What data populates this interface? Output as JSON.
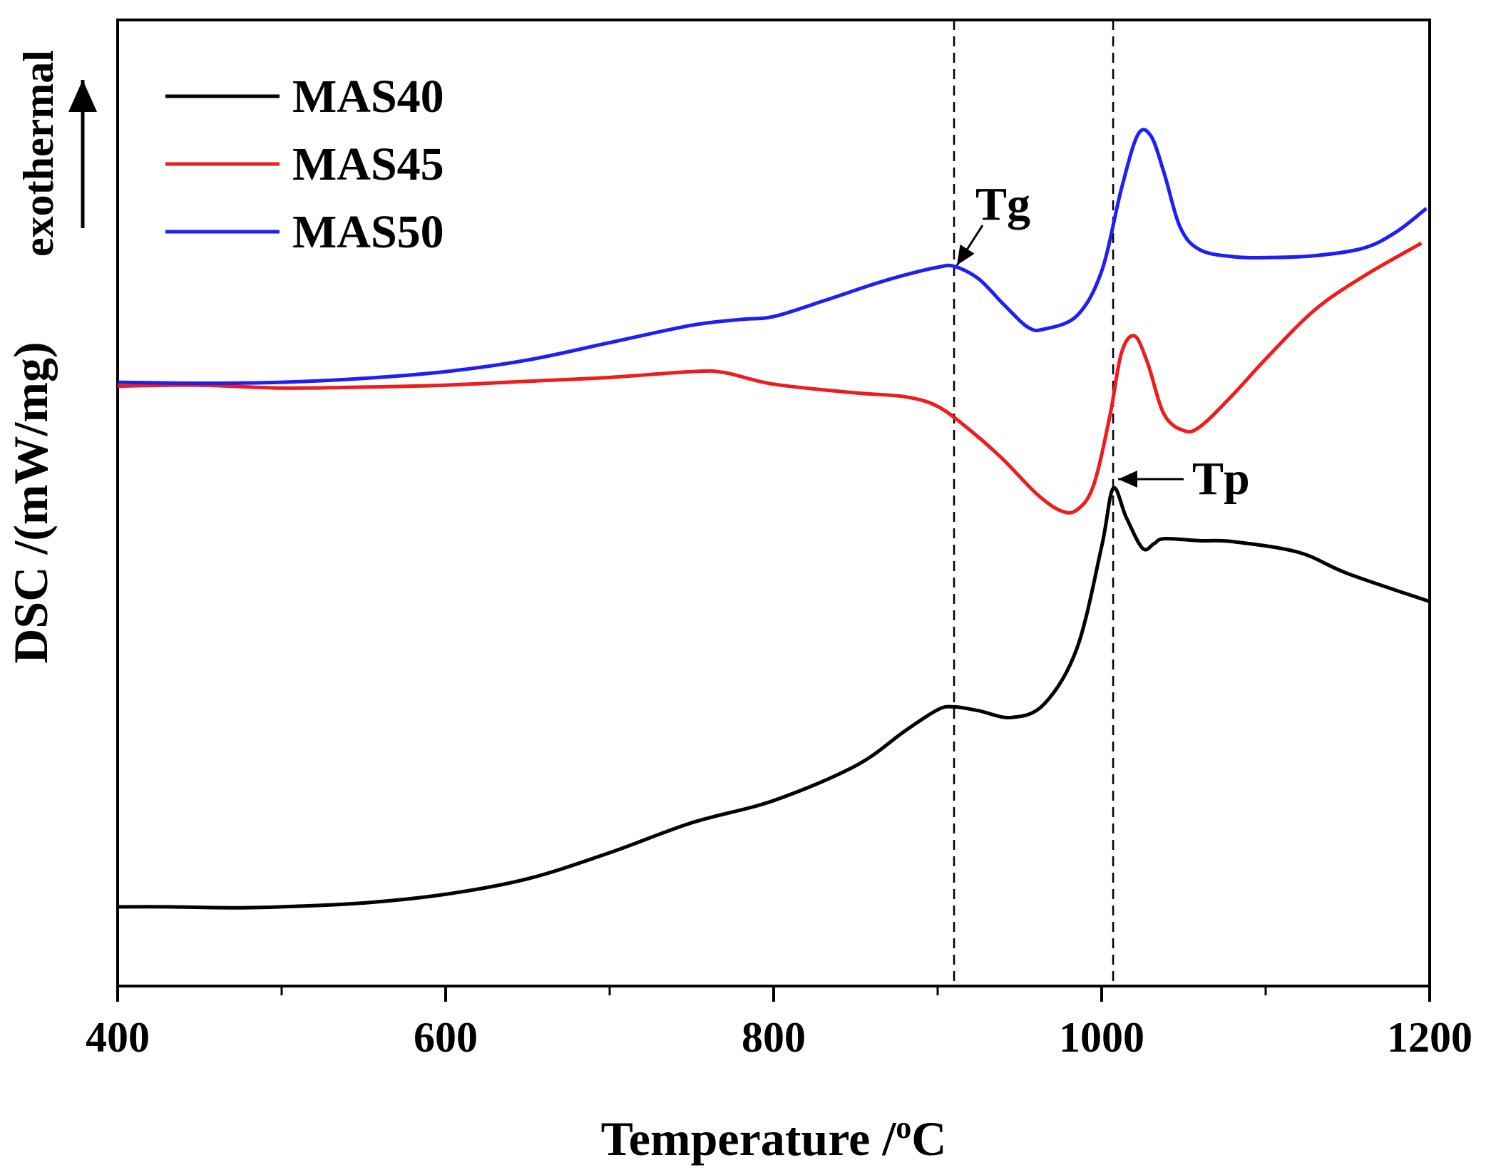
{
  "chart_data": {
    "type": "line",
    "title": "",
    "xlabel": "Temperature /",
    "xlabel_unit_sup": "o",
    "xlabel_unit": "C",
    "ylabel": "DSC /(mW/mg)",
    "xlim": [
      400,
      1200
    ],
    "ylim": [
      0,
      100
    ],
    "x_ticks": [
      400,
      600,
      800,
      1000,
      1200
    ],
    "x_tick_labels": [
      "400",
      "600",
      "800",
      "1000",
      "1200"
    ],
    "x_minor_ticks": [
      500,
      700,
      900,
      1100
    ],
    "y_tick_labels_shown": false,
    "legend_position": "top-left",
    "exothermal_label": "exothermal",
    "guide_lines_x": [
      910,
      1007
    ],
    "annotations": [
      {
        "text": "Tg",
        "x": 910,
        "y": 74.5,
        "series": "MAS50"
      },
      {
        "text": "Tp",
        "x": 1007,
        "y": 51.5,
        "series": "MAS40"
      }
    ],
    "series": [
      {
        "name": "MAS40",
        "color": "#000000",
        "points": [
          [
            400,
            8.2
          ],
          [
            430,
            8.2
          ],
          [
            470,
            8.1
          ],
          [
            500,
            8.2
          ],
          [
            550,
            8.6
          ],
          [
            600,
            9.5
          ],
          [
            650,
            11.1
          ],
          [
            700,
            13.8
          ],
          [
            750,
            16.9
          ],
          [
            800,
            19.2
          ],
          [
            850,
            22.8
          ],
          [
            880,
            26.4
          ],
          [
            900,
            28.6
          ],
          [
            910,
            28.9
          ],
          [
            925,
            28.5
          ],
          [
            945,
            27.8
          ],
          [
            965,
            29.2
          ],
          [
            985,
            35.0
          ],
          [
            1000,
            45.5
          ],
          [
            1007,
            51.5
          ],
          [
            1015,
            48.5
          ],
          [
            1025,
            45.3
          ],
          [
            1032,
            45.8
          ],
          [
            1038,
            46.3
          ],
          [
            1060,
            46.1
          ],
          [
            1080,
            46.0
          ],
          [
            1120,
            44.9
          ],
          [
            1150,
            42.7
          ],
          [
            1200,
            39.8
          ]
        ]
      },
      {
        "name": "MAS45",
        "color": "#ee1c1c",
        "points": [
          [
            400,
            62.1
          ],
          [
            450,
            62.2
          ],
          [
            500,
            61.9
          ],
          [
            550,
            62.0
          ],
          [
            600,
            62.2
          ],
          [
            650,
            62.6
          ],
          [
            700,
            63.0
          ],
          [
            750,
            63.6
          ],
          [
            770,
            63.5
          ],
          [
            800,
            62.3
          ],
          [
            850,
            61.4
          ],
          [
            880,
            61.0
          ],
          [
            900,
            60.0
          ],
          [
            920,
            57.5
          ],
          [
            940,
            54.5
          ],
          [
            960,
            51.0
          ],
          [
            975,
            49.2
          ],
          [
            985,
            49.3
          ],
          [
            995,
            51.8
          ],
          [
            1005,
            59.0
          ],
          [
            1012,
            65.5
          ],
          [
            1020,
            67.3
          ],
          [
            1028,
            64.5
          ],
          [
            1038,
            59.2
          ],
          [
            1050,
            57.5
          ],
          [
            1060,
            57.9
          ],
          [
            1080,
            61.2
          ],
          [
            1100,
            64.9
          ],
          [
            1130,
            70.0
          ],
          [
            1160,
            73.5
          ],
          [
            1195,
            76.9
          ]
        ]
      },
      {
        "name": "MAS50",
        "color": "#1f1ff5",
        "points": [
          [
            400,
            62.5
          ],
          [
            450,
            62.4
          ],
          [
            500,
            62.5
          ],
          [
            550,
            62.9
          ],
          [
            600,
            63.6
          ],
          [
            650,
            64.8
          ],
          [
            700,
            66.6
          ],
          [
            750,
            68.4
          ],
          [
            780,
            69.0
          ],
          [
            800,
            69.3
          ],
          [
            830,
            70.9
          ],
          [
            860,
            72.6
          ],
          [
            880,
            73.6
          ],
          [
            900,
            74.4
          ],
          [
            910,
            74.5
          ],
          [
            925,
            73.2
          ],
          [
            940,
            70.6
          ],
          [
            955,
            68.2
          ],
          [
            965,
            68.0
          ],
          [
            985,
            69.4
          ],
          [
            1000,
            74.0
          ],
          [
            1012,
            82.5
          ],
          [
            1022,
            88.1
          ],
          [
            1030,
            88.0
          ],
          [
            1038,
            84.2
          ],
          [
            1048,
            78.5
          ],
          [
            1060,
            76.2
          ],
          [
            1080,
            75.5
          ],
          [
            1100,
            75.4
          ],
          [
            1130,
            75.6
          ],
          [
            1160,
            76.4
          ],
          [
            1180,
            78.1
          ],
          [
            1198,
            80.5
          ]
        ]
      }
    ]
  }
}
